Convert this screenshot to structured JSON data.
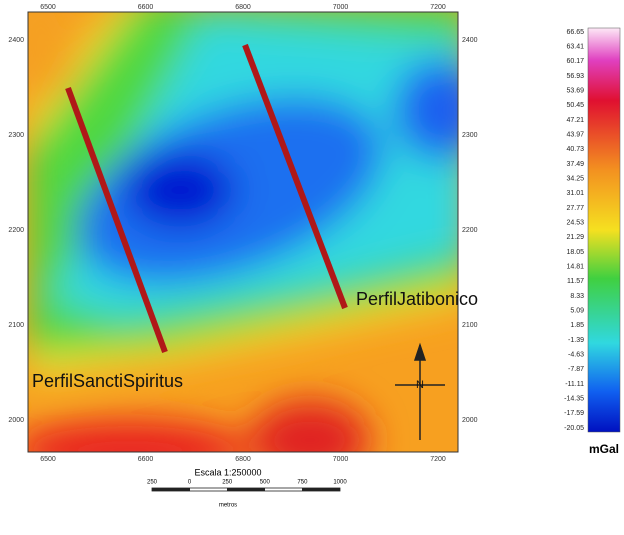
{
  "map": {
    "top_axis_labels": [
      "6500",
      "6600",
      "6800",
      "7000",
      "7200"
    ],
    "bottom_axis_labels": [
      "6500",
      "6600",
      "6800",
      "7000",
      "7200"
    ],
    "left_axis_labels": [
      "2400",
      "2300",
      "2200",
      "2100",
      "2000"
    ],
    "right_axis_labels": [
      "2400",
      "2300",
      "2200",
      "2100",
      "2000"
    ],
    "profiles": [
      {
        "label": "PerfilJatibonico"
      },
      {
        "label": "PerfilSanctiSpiritus"
      }
    ],
    "north_label": "N",
    "colorbar": {
      "unit": "mGal",
      "labels": [
        "66.65",
        "63.41",
        "60.17",
        "56.93",
        "53.69",
        "50.45",
        "47.21",
        "43.97",
        "40.73",
        "37.49",
        "34.25",
        "31.01",
        "27.77",
        "24.53",
        "21.29",
        "18.05",
        "14.81",
        "11.57",
        "8.33",
        "5.09",
        "1.85",
        "-1.39",
        "-4.63",
        "-7.87",
        "-11.11",
        "-14.35",
        "-17.59",
        "-20.05"
      ]
    },
    "scale": {
      "title": "Escala 1:250000",
      "ticks": [
        "250",
        "0",
        "250",
        "500",
        "750",
        "1000"
      ],
      "unit": "metros"
    }
  }
}
